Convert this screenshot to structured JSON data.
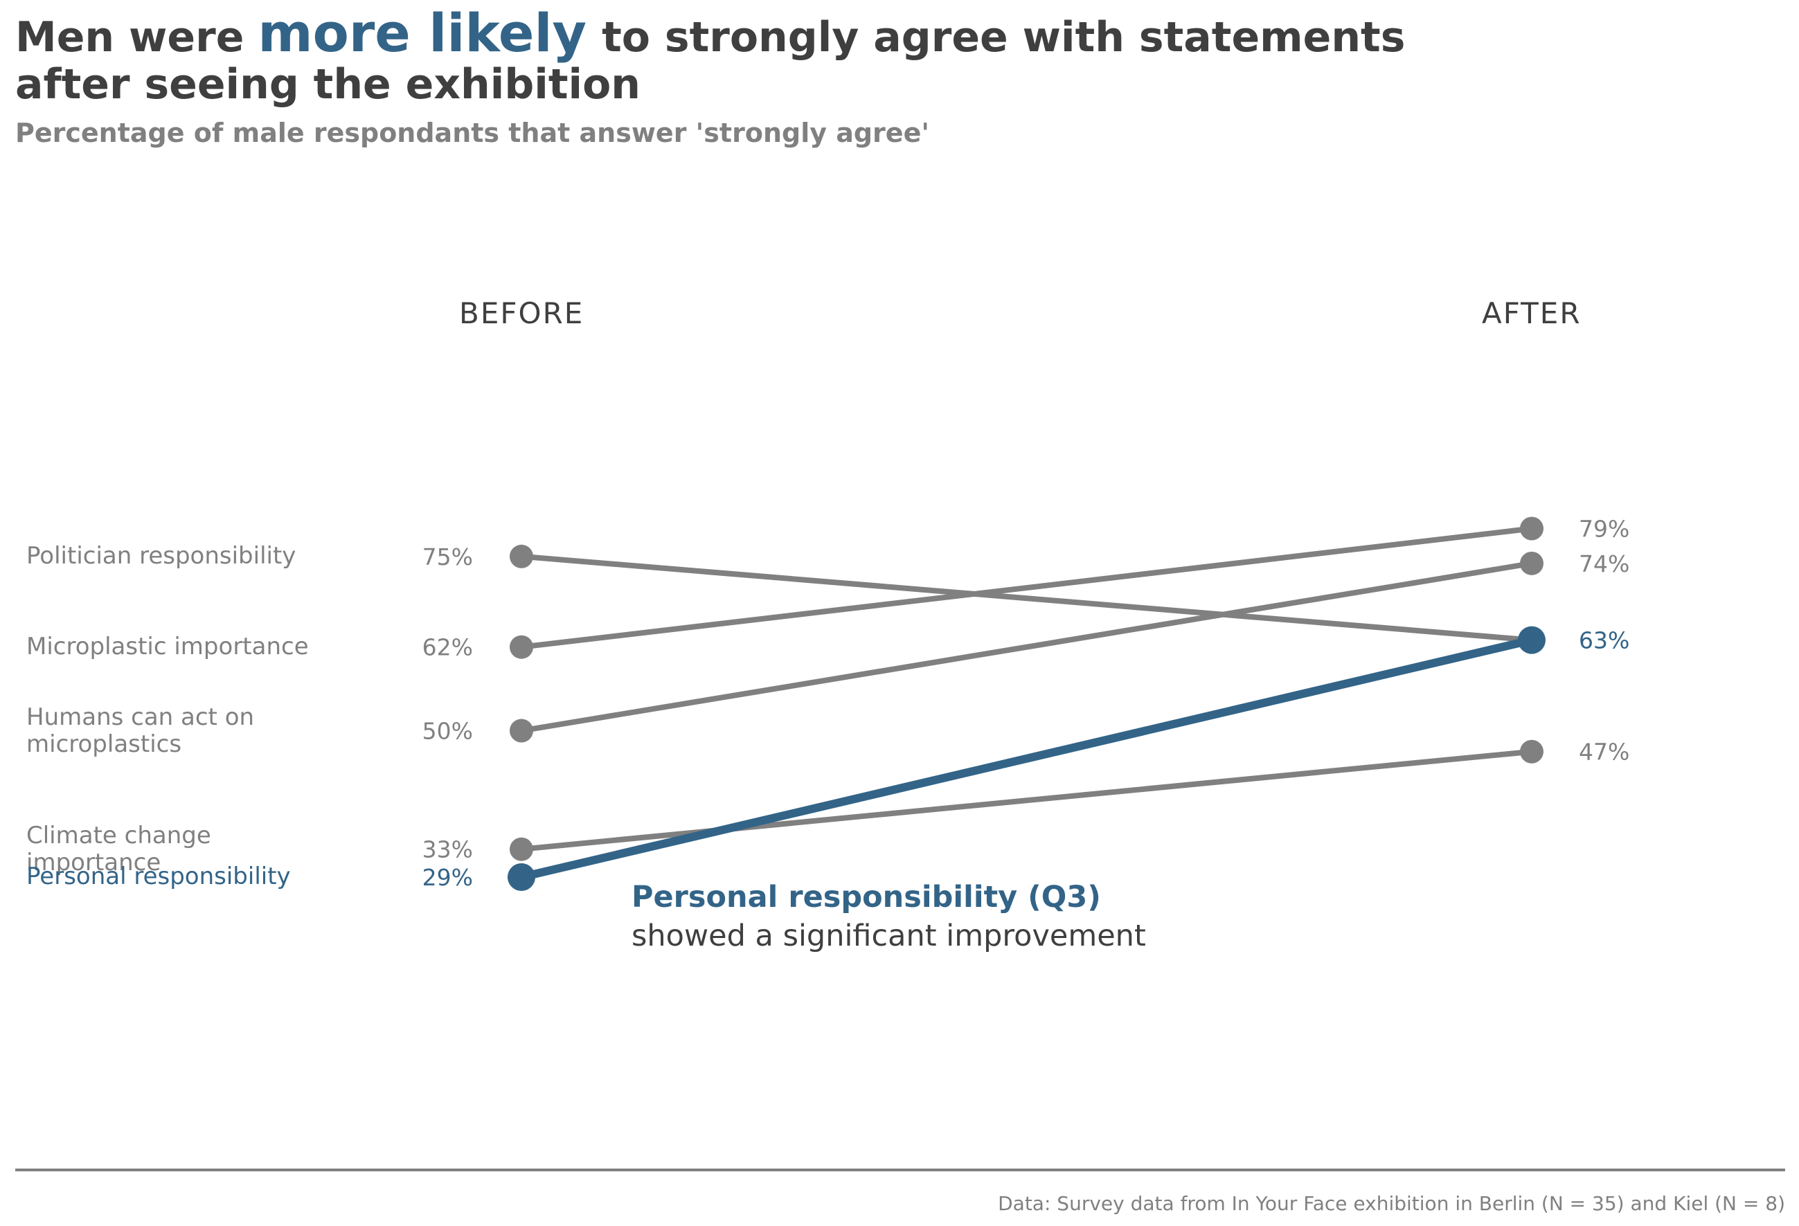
{
  "header": {
    "title_part1": "Men were",
    "title_highlight": "more likely",
    "title_part2": "to strongly agree with statements",
    "title_line2": "after seeing the exhibition",
    "subtitle": "Percentage of male respondants that answer 'strongly agree'"
  },
  "annotation": {
    "line1": "Personal responsibility (Q3)",
    "line2": "showed a significant improvement"
  },
  "footer": {
    "source": "Data: Survey data from In Your Face exhibition in Berlin (N = 35) and Kiel (N = 8)"
  },
  "colors": {
    "muted": "#808080",
    "highlight": "#336488",
    "text_dark": "#3f3f3f"
  },
  "chart_data": {
    "type": "line",
    "chart_subtype": "slope",
    "x": [
      "BEFORE",
      "AFTER"
    ],
    "series": [
      {
        "name": "Politician responsibility",
        "label_lines": [
          "Politician responsibility"
        ],
        "values": [
          75,
          63
        ],
        "before_label": "75%",
        "after_label": "",
        "highlight": false
      },
      {
        "name": "Microplastic importance",
        "label_lines": [
          "Microplastic importance"
        ],
        "values": [
          62,
          79
        ],
        "before_label": "62%",
        "after_label": "79%",
        "highlight": false
      },
      {
        "name": "Humans can act on microplastics",
        "label_lines": [
          "Humans can act on",
          "microplastics"
        ],
        "values": [
          50,
          74
        ],
        "before_label": "50%",
        "after_label": "74%",
        "highlight": false
      },
      {
        "name": "Climate change importance",
        "label_lines": [
          "Climate change",
          "importance"
        ],
        "values": [
          33,
          47
        ],
        "before_label": "33%",
        "after_label": "47%",
        "highlight": false
      },
      {
        "name": "Personal responsibility",
        "label_lines": [
          "Personal responsibility"
        ],
        "values": [
          29,
          63
        ],
        "before_label": "29%",
        "after_label": "63%",
        "highlight": true
      }
    ],
    "ylim": [
      25,
      82
    ],
    "unit": "%",
    "grid": false,
    "legend": "direct labels at left"
  }
}
